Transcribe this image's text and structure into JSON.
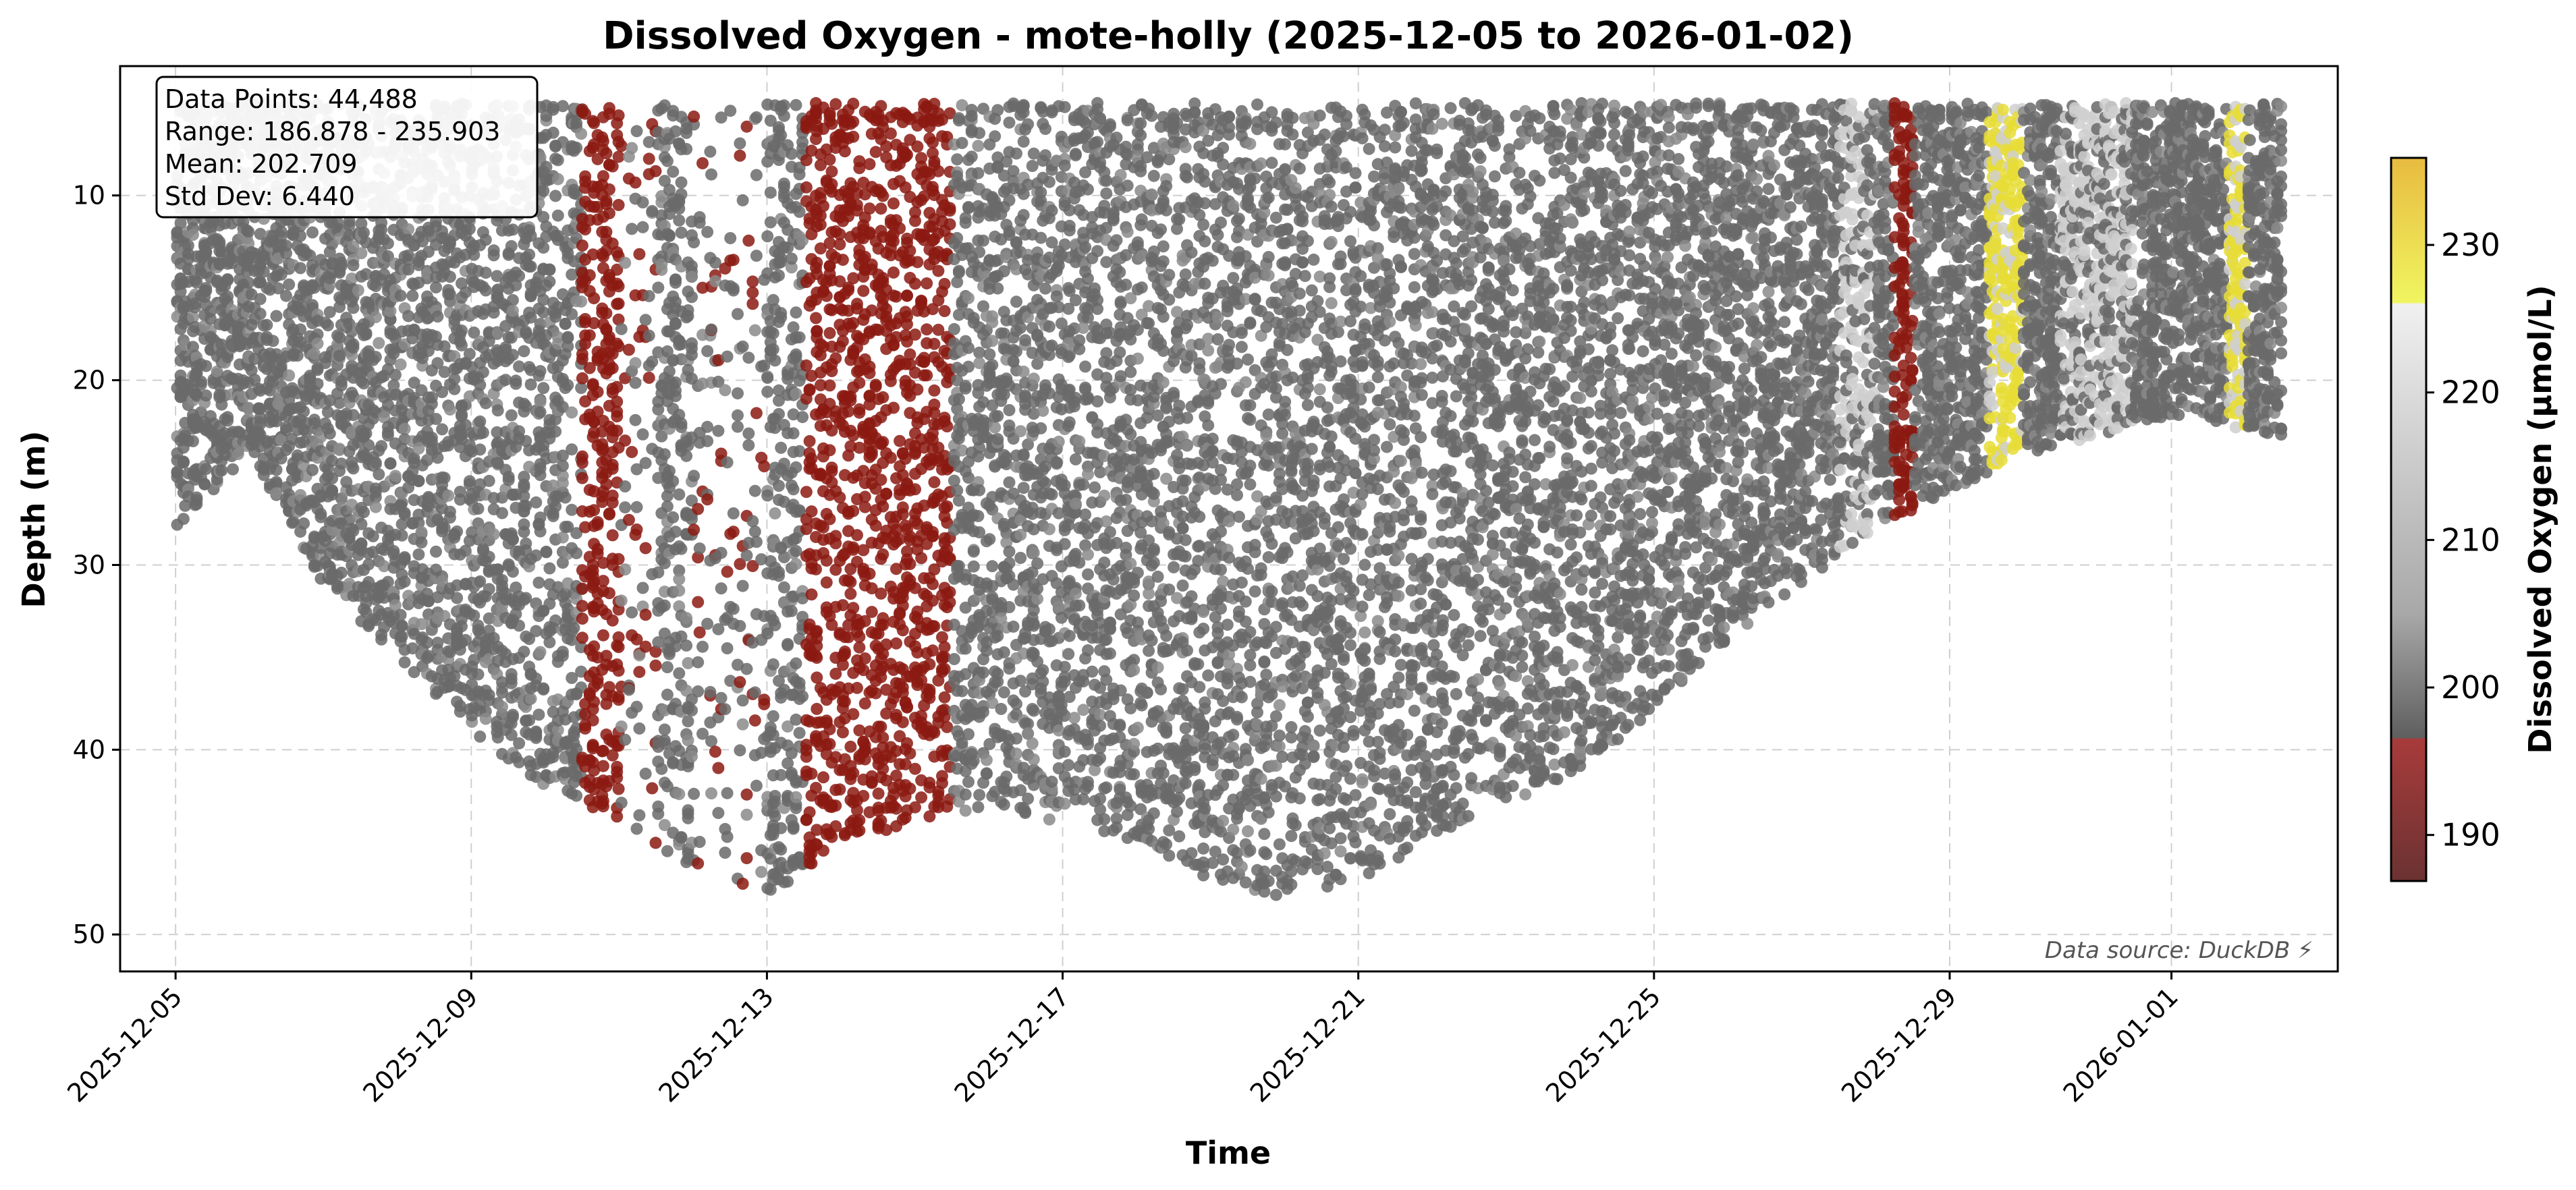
{
  "colors": {
    "low": "#8b1a12",
    "mid": "#6a6a6a",
    "light": "#cfcfcf",
    "high": "#e8dd36",
    "grid": "#cfcfcf"
  },
  "chart_data": {
    "type": "scatter",
    "title": "Dissolved Oxygen - mote-holly (2025-12-05 to 2026-01-02)",
    "xlabel": "Time",
    "ylabel": "Depth (m)",
    "x_range": [
      "2025-12-04T06:00",
      "2026-01-03T06:00"
    ],
    "y_range": [
      52,
      3
    ],
    "y_inverted": true,
    "grid": true,
    "x_ticks": [
      "2025-12-05",
      "2025-12-09",
      "2025-12-13",
      "2025-12-17",
      "2025-12-21",
      "2025-12-25",
      "2025-12-29",
      "2026-01-01"
    ],
    "y_ticks": [
      10,
      20,
      30,
      40,
      50
    ],
    "colorbar": {
      "label": "Dissolved Oxygen (μmol/L)",
      "range": [
        186.878,
        235.903
      ],
      "ticks": [
        190,
        200,
        210,
        220,
        230
      ],
      "colors": [
        {
          "value": 186.878,
          "color": "#6b3232"
        },
        {
          "value": 196.5,
          "color": "#a83b3b"
        },
        {
          "value": 196.6,
          "color": "#5f5f5f"
        },
        {
          "value": 205,
          "color": "#a8a8a8"
        },
        {
          "value": 226,
          "color": "#f0f0f0"
        },
        {
          "value": 226.1,
          "color": "#f0f560"
        },
        {
          "value": 235.903,
          "color": "#e8bb40"
        }
      ]
    },
    "stats": {
      "data_points": "Data Points: 44,488",
      "range": "Range: 186.878 - 235.903",
      "mean": "Mean: 202.709",
      "std_dev": "Std Dev: 6.440"
    },
    "source_note": "Data source: DuckDB ⚡",
    "depth_envelope": [
      {
        "date": "2025-12-05T00:00",
        "max_depth": 28
      },
      {
        "date": "2025-12-06T00:00",
        "max_depth": 24
      },
      {
        "date": "2025-12-07T00:00",
        "max_depth": 31
      },
      {
        "date": "2025-12-08T00:00",
        "max_depth": 35
      },
      {
        "date": "2025-12-09T00:00",
        "max_depth": 39
      },
      {
        "date": "2025-12-10T00:00",
        "max_depth": 42
      },
      {
        "date": "2025-12-11T00:00",
        "max_depth": 44
      },
      {
        "date": "2025-12-12T00:00",
        "max_depth": 47
      },
      {
        "date": "2025-12-13T00:00",
        "max_depth": 48
      },
      {
        "date": "2025-12-14T00:00",
        "max_depth": 45
      },
      {
        "date": "2025-12-15T00:00",
        "max_depth": 44
      },
      {
        "date": "2025-12-16T00:00",
        "max_depth": 43
      },
      {
        "date": "2025-12-17T00:00",
        "max_depth": 44
      },
      {
        "date": "2025-12-18T00:00",
        "max_depth": 45
      },
      {
        "date": "2025-12-19T00:00",
        "max_depth": 47
      },
      {
        "date": "2025-12-20T00:00",
        "max_depth": 48
      },
      {
        "date": "2025-12-21T00:00",
        "max_depth": 47
      },
      {
        "date": "2025-12-22T00:00",
        "max_depth": 45
      },
      {
        "date": "2025-12-23T00:00",
        "max_depth": 43
      },
      {
        "date": "2025-12-24T00:00",
        "max_depth": 41
      },
      {
        "date": "2025-12-25T00:00",
        "max_depth": 38
      },
      {
        "date": "2025-12-26T00:00",
        "max_depth": 34
      },
      {
        "date": "2025-12-27T00:00",
        "max_depth": 31
      },
      {
        "date": "2025-12-28T00:00",
        "max_depth": 28
      },
      {
        "date": "2025-12-29T00:00",
        "max_depth": 26
      },
      {
        "date": "2025-12-30T00:00",
        "max_depth": 24
      },
      {
        "date": "2025-12-31T00:00",
        "max_depth": 23
      },
      {
        "date": "2026-01-01T00:00",
        "max_depth": 22
      },
      {
        "date": "2026-01-02T12:00",
        "max_depth": 23
      }
    ],
    "min_depth": 5,
    "time_span": [
      "2025-12-05T00:00",
      "2026-01-02T12:00"
    ],
    "bands": [
      {
        "start": "2025-12-10T12:00",
        "end": "2025-12-11T00:00",
        "level": "low"
      },
      {
        "start": "2025-12-11T00:00",
        "end": "2025-12-11T12:00",
        "level": "low_sparse"
      },
      {
        "start": "2025-12-12T00:00",
        "end": "2025-12-13T00:00",
        "level": "low_sparse"
      },
      {
        "start": "2025-12-13T12:00",
        "end": "2025-12-15T12:00",
        "level": "low"
      },
      {
        "start": "2025-12-28T06:00",
        "end": "2025-12-28T12:00",
        "level": "low"
      },
      {
        "start": "2025-12-29T12:00",
        "end": "2025-12-30T00:00",
        "level": "high"
      },
      {
        "start": "2026-01-01T18:00",
        "end": "2026-01-02T00:00",
        "level": "high"
      },
      {
        "start": "2025-12-27T12:00",
        "end": "2025-12-28T00:00",
        "level": "light"
      },
      {
        "start": "2025-12-30T12:00",
        "end": "2025-12-31T12:00",
        "level": "light"
      }
    ]
  }
}
